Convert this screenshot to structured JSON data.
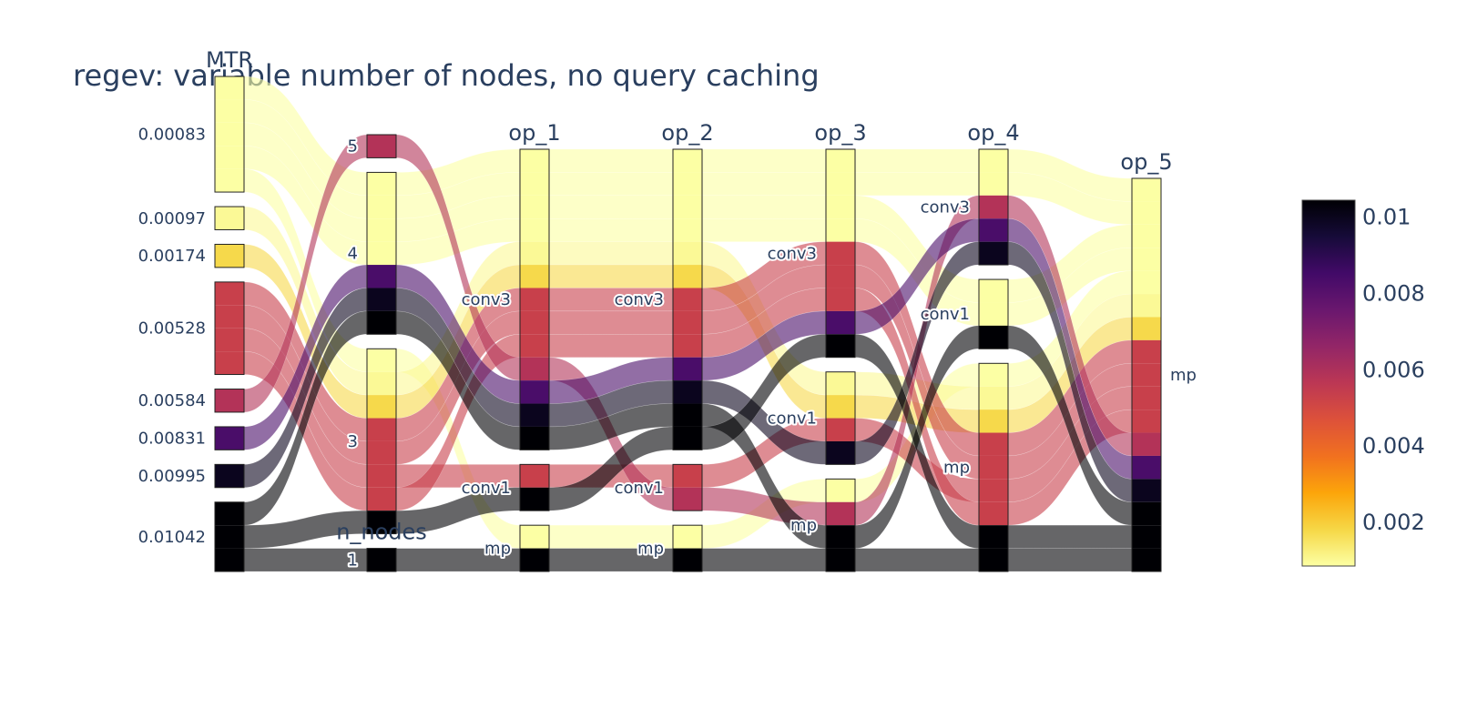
{
  "chart_data": {
    "type": "parallel_categories",
    "title": "regev: variable number of nodes, no query caching",
    "colorscale": "Inferno (reversed)",
    "color_range": [
      0.00083,
      0.01042
    ],
    "colorbar": {
      "tick_labels": [
        "0.002",
        "0.004",
        "0.006",
        "0.008",
        "0.01"
      ],
      "tick_values": [
        0.002,
        0.004,
        0.006,
        0.008,
        0.01
      ]
    },
    "dimensions": [
      {
        "label": "MTR",
        "categories": [
          "0.00083",
          "0.00097",
          "0.00174",
          "0.00528",
          "0.00584",
          "0.00831",
          "0.00995",
          "0.01042"
        ]
      },
      {
        "label": "n_nodes",
        "categories": [
          "5",
          "4",
          "3",
          "1"
        ]
      },
      {
        "label": "op_1",
        "categories": [
          "conv3",
          "conv1",
          "mp"
        ]
      },
      {
        "label": "op_2",
        "categories": [
          "conv3",
          "conv1",
          "mp"
        ]
      },
      {
        "label": "op_3",
        "categories": [
          "conv3",
          "conv1",
          "mp"
        ]
      },
      {
        "label": "op_4",
        "categories": [
          "conv3",
          "conv1",
          "mp"
        ]
      },
      {
        "label": "op_5",
        "categories": [
          "mp"
        ]
      }
    ],
    "records": [
      {
        "mtr": 0.00083,
        "n_nodes": "4",
        "ops": [
          "conv3",
          "conv3",
          "conv3",
          "conv3",
          "mp"
        ]
      },
      {
        "mtr": 0.00083,
        "n_nodes": "4",
        "ops": [
          "conv3",
          "conv3",
          "conv3",
          "conv3",
          "mp"
        ]
      },
      {
        "mtr": 0.00083,
        "n_nodes": "4",
        "ops": [
          "conv3",
          "conv3",
          "conv3",
          "conv1",
          "mp"
        ]
      },
      {
        "mtr": 0.00083,
        "n_nodes": "4",
        "ops": [
          "conv3",
          "conv3",
          "conv3",
          "conv1",
          "mp"
        ]
      },
      {
        "mtr": 0.00083,
        "n_nodes": "3",
        "ops": [
          "mp",
          "mp",
          "mp",
          "mp",
          "mp"
        ]
      },
      {
        "mtr": 0.00097,
        "n_nodes": "3",
        "ops": [
          "conv3",
          "conv3",
          "conv1",
          "mp",
          "mp"
        ]
      },
      {
        "mtr": 0.00174,
        "n_nodes": "3",
        "ops": [
          "conv3",
          "conv3",
          "conv1",
          "mp",
          "mp"
        ]
      },
      {
        "mtr": 0.00528,
        "n_nodes": "3",
        "ops": [
          "conv3",
          "conv3",
          "conv3",
          "mp",
          "mp"
        ]
      },
      {
        "mtr": 0.00528,
        "n_nodes": "3",
        "ops": [
          "conv3",
          "conv3",
          "conv3",
          "mp",
          "mp"
        ]
      },
      {
        "mtr": 0.00528,
        "n_nodes": "3",
        "ops": [
          "conv1",
          "conv1",
          "conv1",
          "mp",
          "mp"
        ]
      },
      {
        "mtr": 0.00528,
        "n_nodes": "3",
        "ops": [
          "conv3",
          "conv3",
          "conv3",
          "mp",
          "mp"
        ]
      },
      {
        "mtr": 0.00584,
        "n_nodes": "5",
        "ops": [
          "conv3",
          "conv1",
          "mp",
          "conv3",
          "mp"
        ]
      },
      {
        "mtr": 0.00831,
        "n_nodes": "4",
        "ops": [
          "conv3",
          "conv3",
          "conv3",
          "conv3",
          "mp"
        ]
      },
      {
        "mtr": 0.00995,
        "n_nodes": "4",
        "ops": [
          "conv3",
          "conv3",
          "conv1",
          "conv3",
          "mp"
        ]
      },
      {
        "mtr": 0.01042,
        "n_nodes": "4",
        "ops": [
          "conv3",
          "conv3",
          "mp",
          "conv1",
          "mp"
        ]
      },
      {
        "mtr": 0.01042,
        "n_nodes": "3",
        "ops": [
          "conv1",
          "conv3",
          "conv3",
          "mp",
          "mp"
        ]
      },
      {
        "mtr": 0.01042,
        "n_nodes": "1",
        "ops": [
          "mp",
          "mp",
          "mp",
          "mp",
          "mp"
        ]
      }
    ]
  }
}
